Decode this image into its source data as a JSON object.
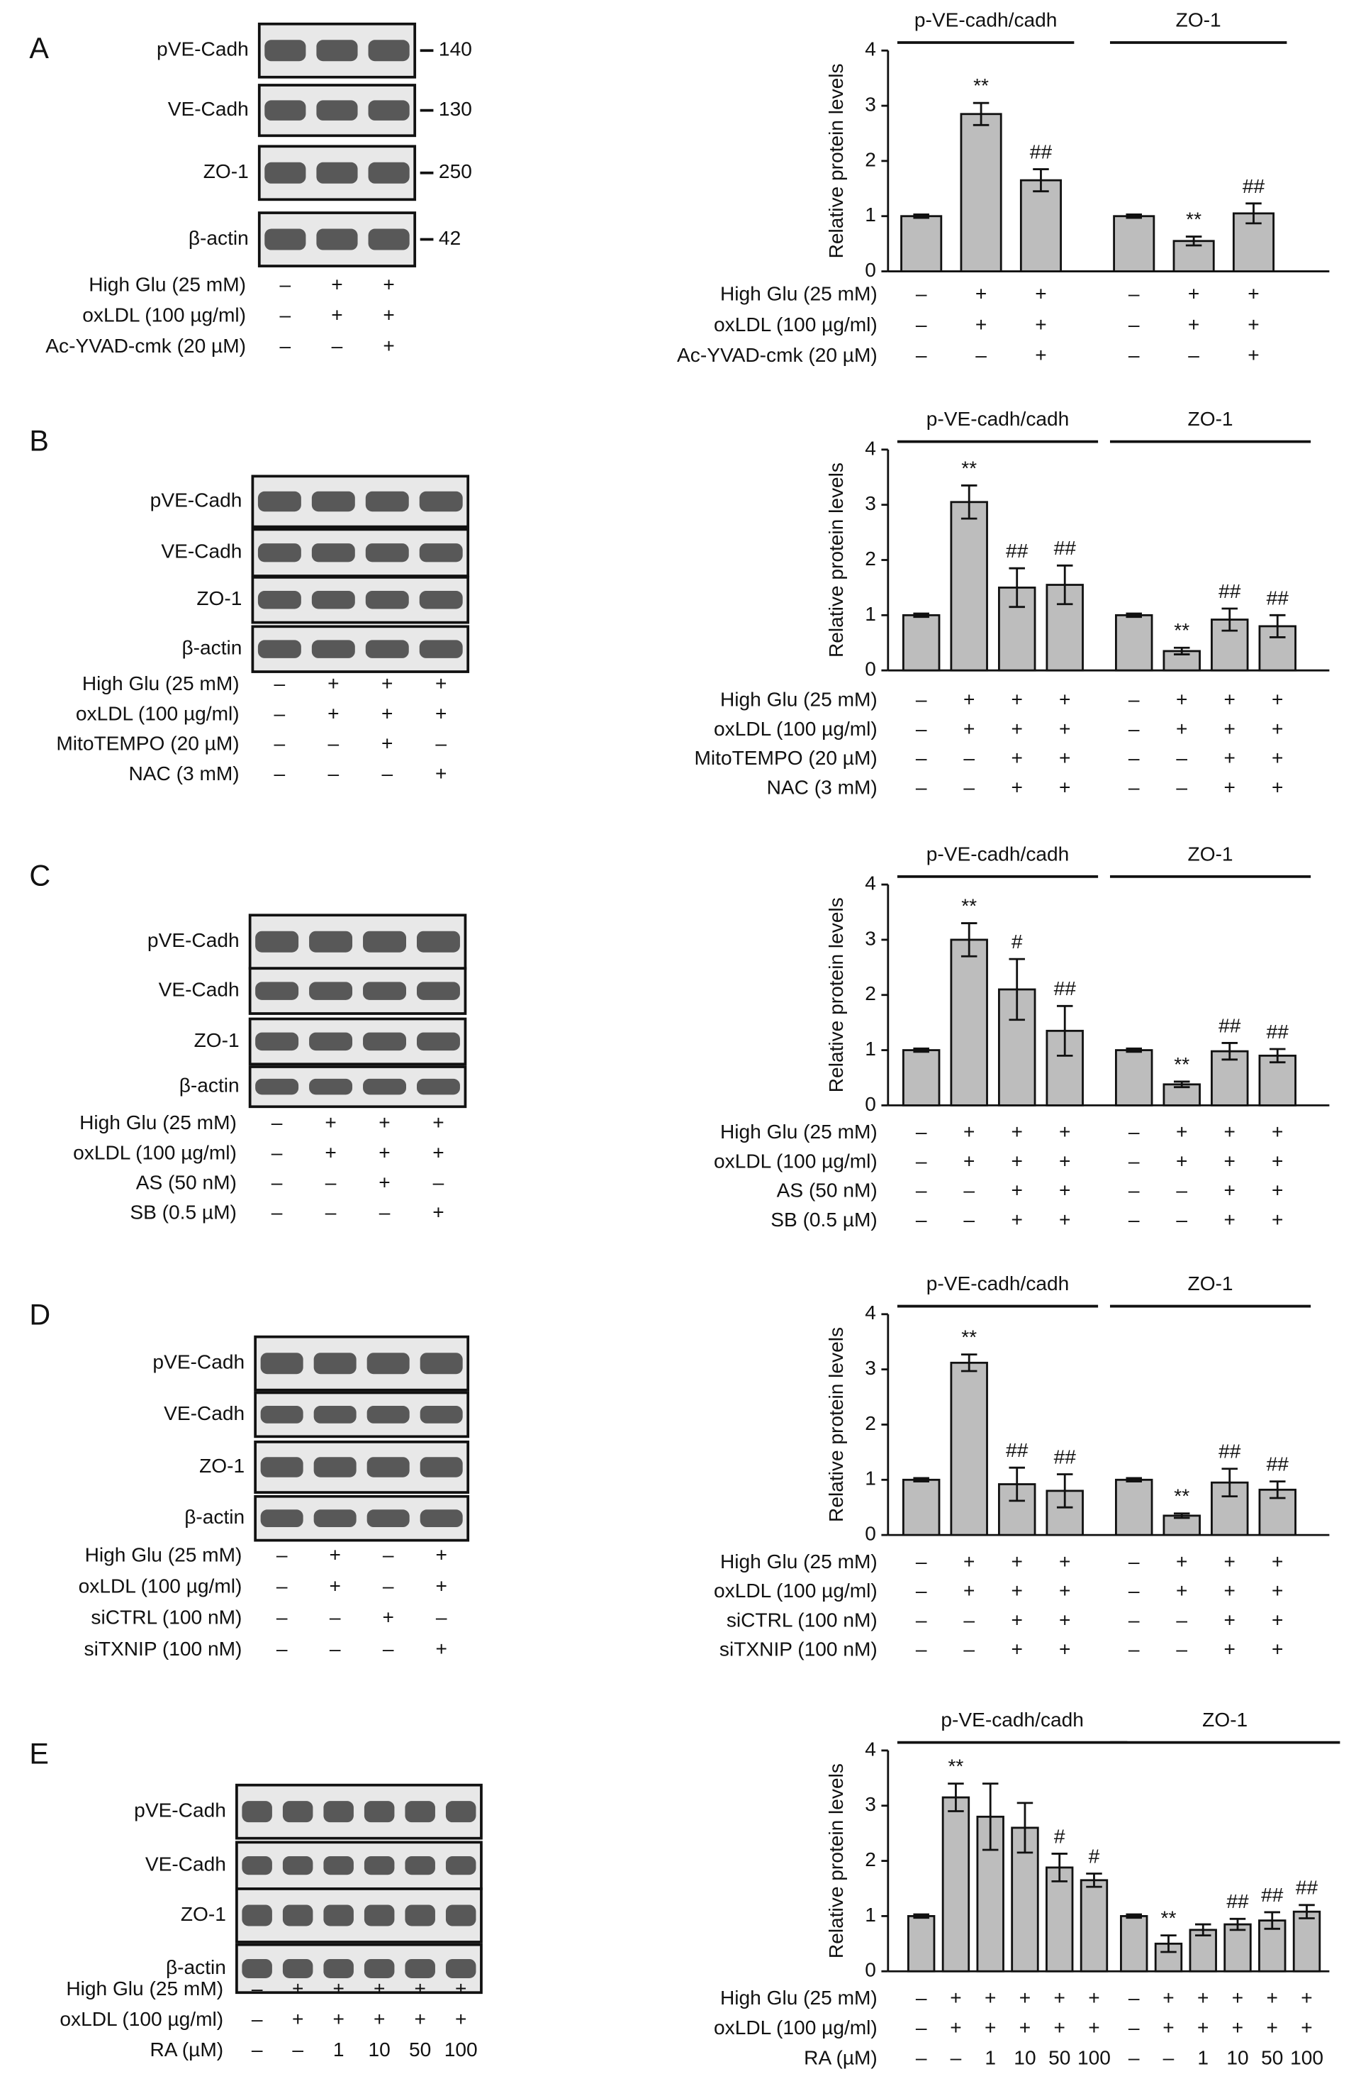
{
  "panels": [
    {
      "letter": "A",
      "blot": {
        "labels": [
          "pVE-Cadh",
          "VE-Cadh",
          "ZO-1",
          "β-actin"
        ],
        "markers": [
          140,
          130,
          250,
          42
        ]
      },
      "conditions": [
        {
          "label": "High Glu (25 mM)",
          "signs": [
            "–",
            "+",
            "+"
          ]
        },
        {
          "label": "oxLDL (100 µg/ml)",
          "signs": [
            "–",
            "+",
            "+"
          ]
        },
        {
          "label": "Ac-YVAD-cmk (20 µM)",
          "signs": [
            "–",
            "–",
            "+"
          ]
        }
      ]
    },
    {
      "letter": "B",
      "blot": {
        "labels": [
          "pVE-Cadh",
          "VE-Cadh",
          "ZO-1",
          "β-actin"
        ]
      },
      "conditions": [
        {
          "label": "High Glu (25 mM)",
          "signs": [
            "–",
            "+",
            "+",
            "+"
          ]
        },
        {
          "label": "oxLDL (100 µg/ml)",
          "signs": [
            "–",
            "+",
            "+",
            "+"
          ]
        },
        {
          "label": "MitoTEMPO (20 µM)",
          "signs": [
            "–",
            "–",
            "+",
            "–"
          ]
        },
        {
          "label": "NAC (3 mM)",
          "signs": [
            "–",
            "–",
            "–",
            "+"
          ]
        }
      ]
    },
    {
      "letter": "C",
      "blot": {
        "labels": [
          "pVE-Cadh",
          "VE-Cadh",
          "ZO-1",
          "β-actin"
        ]
      },
      "conditions": [
        {
          "label": "High Glu (25 mM)",
          "signs": [
            "–",
            "+",
            "+",
            "+"
          ]
        },
        {
          "label": "oxLDL (100 µg/ml)",
          "signs": [
            "–",
            "+",
            "+",
            "+"
          ]
        },
        {
          "label": "AS (50 nM)",
          "signs": [
            "–",
            "–",
            "+",
            "–"
          ]
        },
        {
          "label": "SB (0.5 µM)",
          "signs": [
            "–",
            "–",
            "–",
            "+"
          ]
        }
      ]
    },
    {
      "letter": "D",
      "blot": {
        "labels": [
          "pVE-Cadh",
          "VE-Cadh",
          "ZO-1",
          "β-actin"
        ]
      },
      "conditions": [
        {
          "label": "High Glu (25 mM)",
          "signs": [
            "–",
            "+",
            "–",
            "+"
          ]
        },
        {
          "label": "oxLDL (100 µg/ml)",
          "signs": [
            "–",
            "+",
            "–",
            "+"
          ]
        },
        {
          "label": "siCTRL (100 nM)",
          "signs": [
            "–",
            "–",
            "+",
            "–"
          ]
        },
        {
          "label": "siTXNIP (100 nM)",
          "signs": [
            "–",
            "–",
            "–",
            "+"
          ]
        }
      ]
    },
    {
      "letter": "E",
      "blot": {
        "labels": [
          "pVE-Cadh",
          "VE-Cadh",
          "ZO-1",
          "β-actin"
        ]
      },
      "conditions": [
        {
          "label": "High Glu (25 mM)",
          "signs": [
            "–",
            "+",
            "+",
            "+",
            "+",
            "+"
          ]
        },
        {
          "label": "oxLDL (100 µg/ml)",
          "signs": [
            "–",
            "+",
            "+",
            "+",
            "+",
            "+"
          ]
        },
        {
          "label": "RA (µM)",
          "signs": [
            "–",
            "–",
            "1",
            "10",
            "50",
            "100"
          ]
        }
      ]
    }
  ],
  "chart_data": [
    {
      "type": "bar",
      "ylabel": "Relative protein levels",
      "ylim": [
        0,
        4
      ],
      "yticks": [
        0,
        1,
        2,
        3,
        4
      ],
      "series": [
        {
          "name": "p-VE-cadh/cadh",
          "color": "#bdbdbd",
          "values": [
            1,
            2.85,
            1.65
          ],
          "errors": [
            0.03,
            0.2,
            0.2
          ],
          "annotations": [
            null,
            "**",
            "##"
          ]
        },
        {
          "name": "ZO-1",
          "color": "#bdbdbd",
          "values": [
            1,
            0.55,
            1.05
          ],
          "errors": [
            0.03,
            0.08,
            0.18
          ],
          "annotations": [
            null,
            "**",
            "##"
          ]
        }
      ],
      "conditions": [
        {
          "label": "High Glu (25 mM)",
          "signs": [
            "–",
            "+",
            "+",
            "–",
            "+",
            "+"
          ]
        },
        {
          "label": "oxLDL (100 µg/ml)",
          "signs": [
            "–",
            "+",
            "+",
            "–",
            "+",
            "+"
          ]
        },
        {
          "label": "Ac-YVAD-cmk (20 µM)",
          "signs": [
            "–",
            "–",
            "+",
            "–",
            "–",
            "+"
          ]
        }
      ]
    },
    {
      "type": "bar",
      "ylabel": "Relative protein levels",
      "ylim": [
        0,
        4
      ],
      "yticks": [
        0,
        1,
        2,
        3,
        4
      ],
      "series": [
        {
          "name": "p-VE-cadh/cadh",
          "color": "#bdbdbd",
          "values": [
            1,
            3.05,
            1.5,
            1.55
          ],
          "errors": [
            0.03,
            0.3,
            0.35,
            0.35
          ],
          "annotations": [
            null,
            "**",
            "##",
            "##"
          ]
        },
        {
          "name": "ZO-1",
          "color": "#bdbdbd",
          "values": [
            1,
            0.35,
            0.92,
            0.8
          ],
          "errors": [
            0.03,
            0.06,
            0.2,
            0.2
          ],
          "annotations": [
            null,
            "**",
            "##",
            "##"
          ]
        }
      ],
      "conditions": [
        {
          "label": "High Glu (25 mM)",
          "signs": [
            "–",
            "+",
            "+",
            "+",
            "–",
            "+",
            "+",
            "+"
          ]
        },
        {
          "label": "oxLDL (100 µg/ml)",
          "signs": [
            "–",
            "+",
            "+",
            "+",
            "–",
            "+",
            "+",
            "+"
          ]
        },
        {
          "label": "MitoTEMPO (20 µM)",
          "signs": [
            "–",
            "–",
            "+",
            "+",
            "–",
            "–",
            "+",
            "+"
          ]
        },
        {
          "label": "NAC (3 mM)",
          "signs": [
            "–",
            "–",
            "+",
            "+",
            "–",
            "–",
            "+",
            "+"
          ]
        }
      ]
    },
    {
      "type": "bar",
      "ylabel": "Relative protein levels",
      "ylim": [
        0,
        4
      ],
      "yticks": [
        0,
        1,
        2,
        3,
        4
      ],
      "series": [
        {
          "name": "p-VE-cadh/cadh",
          "color": "#bdbdbd",
          "values": [
            1,
            3.0,
            2.1,
            1.35
          ],
          "errors": [
            0.03,
            0.3,
            0.55,
            0.45
          ],
          "annotations": [
            null,
            "**",
            "#",
            "##"
          ]
        },
        {
          "name": "ZO-1",
          "color": "#bdbdbd",
          "values": [
            1,
            0.38,
            0.98,
            0.9
          ],
          "errors": [
            0.03,
            0.05,
            0.15,
            0.12
          ],
          "annotations": [
            null,
            "**",
            "##",
            "##"
          ]
        }
      ],
      "conditions": [
        {
          "label": "High Glu (25 mM)",
          "signs": [
            "–",
            "+",
            "+",
            "+",
            "–",
            "+",
            "+",
            "+"
          ]
        },
        {
          "label": "oxLDL (100 µg/ml)",
          "signs": [
            "–",
            "+",
            "+",
            "+",
            "–",
            "+",
            "+",
            "+"
          ]
        },
        {
          "label": "AS (50 nM)",
          "signs": [
            "–",
            "–",
            "+",
            "+",
            "–",
            "–",
            "+",
            "+"
          ]
        },
        {
          "label": "SB (0.5 µM)",
          "signs": [
            "–",
            "–",
            "+",
            "+",
            "–",
            "–",
            "+",
            "+"
          ]
        }
      ]
    },
    {
      "type": "bar",
      "ylabel": "Relative protein levels",
      "ylim": [
        0,
        4
      ],
      "yticks": [
        0,
        1,
        2,
        3,
        4
      ],
      "series": [
        {
          "name": "p-VE-cadh/cadh",
          "color": "#bdbdbd",
          "values": [
            1,
            3.12,
            0.92,
            0.8
          ],
          "errors": [
            0.03,
            0.15,
            0.3,
            0.3
          ],
          "annotations": [
            null,
            "**",
            "##",
            "##"
          ]
        },
        {
          "name": "ZO-1",
          "color": "#bdbdbd",
          "values": [
            1,
            0.35,
            0.95,
            0.82
          ],
          "errors": [
            0.03,
            0.04,
            0.25,
            0.15
          ],
          "annotations": [
            null,
            "**",
            "##",
            "##"
          ]
        }
      ],
      "conditions": [
        {
          "label": "High Glu (25 mM)",
          "signs": [
            "–",
            "+",
            "+",
            "+",
            "–",
            "+",
            "+",
            "+"
          ]
        },
        {
          "label": "oxLDL (100 µg/ml)",
          "signs": [
            "–",
            "+",
            "+",
            "+",
            "–",
            "+",
            "+",
            "+"
          ]
        },
        {
          "label": "siCTRL (100 nM)",
          "signs": [
            "–",
            "–",
            "+",
            "+",
            "–",
            "–",
            "+",
            "+"
          ]
        },
        {
          "label": "siTXNIP (100 nM)",
          "signs": [
            "–",
            "–",
            "+",
            "+",
            "–",
            "–",
            "+",
            "+"
          ]
        }
      ]
    },
    {
      "type": "bar",
      "ylabel": "Relative protein levels",
      "ylim": [
        0,
        4
      ],
      "yticks": [
        0,
        1,
        2,
        3,
        4
      ],
      "series": [
        {
          "name": "p-VE-cadh/cadh",
          "color": "#bdbdbd",
          "values": [
            1,
            3.15,
            2.8,
            2.6,
            1.88,
            1.65
          ],
          "errors": [
            0.03,
            0.25,
            0.6,
            0.45,
            0.25,
            0.12
          ],
          "annotations": [
            null,
            "**",
            null,
            null,
            "#",
            "#"
          ]
        },
        {
          "name": "ZO-1",
          "color": "#bdbdbd",
          "values": [
            1,
            0.5,
            0.75,
            0.85,
            0.92,
            1.08
          ],
          "errors": [
            0.03,
            0.15,
            0.1,
            0.1,
            0.15,
            0.12
          ],
          "annotations": [
            null,
            "**",
            null,
            "##",
            "##",
            "##"
          ]
        }
      ],
      "conditions": [
        {
          "label": "High Glu (25 mM)",
          "signs": [
            "–",
            "+",
            "+",
            "+",
            "+",
            "+",
            "–",
            "+",
            "+",
            "+",
            "+",
            "+"
          ]
        },
        {
          "label": "oxLDL (100 µg/ml)",
          "signs": [
            "–",
            "+",
            "+",
            "+",
            "+",
            "+",
            "–",
            "+",
            "+",
            "+",
            "+",
            "+"
          ]
        },
        {
          "label": "RA (µM)",
          "signs": [
            "–",
            "–",
            "1",
            "10",
            "50",
            "100",
            "–",
            "–",
            "1",
            "10",
            "50",
            "100"
          ]
        }
      ]
    }
  ]
}
